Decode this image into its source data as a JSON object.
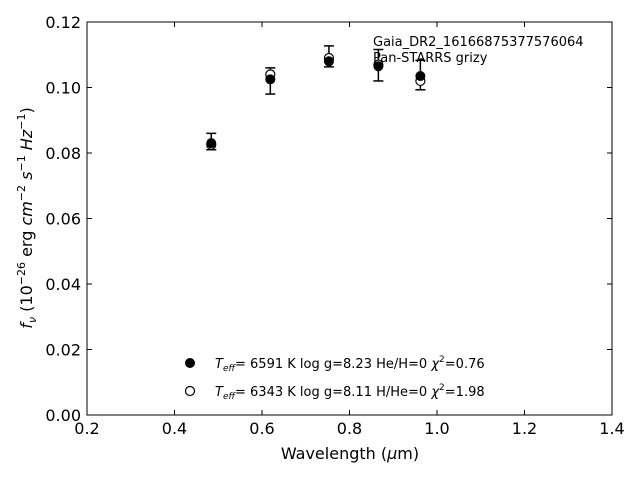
{
  "chart_data": {
    "type": "scatter",
    "title": "",
    "xlabel": "Wavelength (μm)",
    "ylabel": "f_ν (10^-26 erg cm^-2 s^-1 Hz^-1)",
    "xlim": [
      0.2,
      1.4
    ],
    "ylim": [
      0.0,
      0.12
    ],
    "xticks": [
      0.2,
      0.4,
      0.6,
      0.8,
      1.0,
      1.2,
      1.4
    ],
    "yticks": [
      0.0,
      0.02,
      0.04,
      0.06,
      0.08,
      0.1,
      0.12
    ],
    "xtick_labels": [
      "0.2",
      "0.4",
      "0.6",
      "0.8",
      "1.0",
      "1.2",
      "1.4"
    ],
    "ytick_labels": [
      "0.00",
      "0.02",
      "0.04",
      "0.06",
      "0.08",
      "0.10",
      "0.12"
    ],
    "grid": false,
    "legend_position": "bottom-center",
    "annotations": [
      "Gaia_DR2_1616687537757606​4",
      "Pan-STARRS grizy"
    ],
    "observed": {
      "x": [
        0.484,
        0.619,
        0.753,
        0.866,
        0.962
      ],
      "y": [
        0.0835,
        0.102,
        0.1095,
        0.1068,
        0.1038
      ],
      "yerr": [
        0.0025,
        0.004,
        0.0032,
        0.0048,
        0.0045
      ]
    },
    "series": [
      {
        "name": "T_eff= 6591 K  log g=8.23  He/H=0  χ²=0.76",
        "marker": "filled-circle",
        "x": [
          0.484,
          0.619,
          0.753,
          0.866,
          0.962
        ],
        "y": [
          0.083,
          0.1025,
          0.108,
          0.1065,
          0.1035
        ]
      },
      {
        "name": "T_eff= 6343 K  log g=8.11  H/He=0  χ²=1.98",
        "marker": "open-circle",
        "x": [
          0.484,
          0.619,
          0.753,
          0.866,
          0.962
        ],
        "y": [
          0.0825,
          0.104,
          0.109,
          0.107,
          0.102
        ]
      }
    ],
    "legend": {
      "entry1": {
        "teff": "6591 K",
        "logg": "log g=8.23",
        "comp": "He/H=0",
        "chi2": "=0.76"
      },
      "entry2": {
        "teff": "6343 K",
        "logg": "log g=8.11",
        "comp": "H/He=0",
        "chi2": "=1.98"
      }
    }
  }
}
